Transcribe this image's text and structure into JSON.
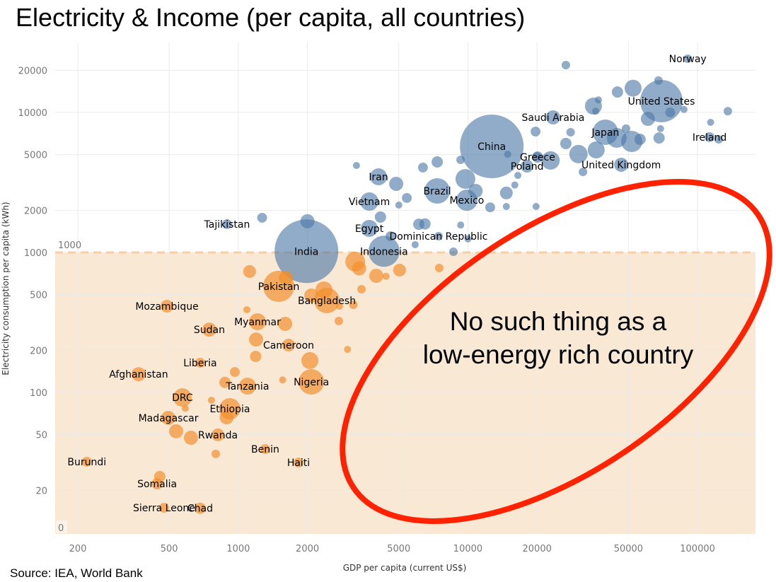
{
  "title": "Electricity & Income (per capita, all countries)",
  "source": "Source: IEA, World Bank",
  "colors": {
    "above_threshold": "#4e79a7",
    "below_threshold": "#f28e2b",
    "shaded_region": "#f8e8d4",
    "threshold_line": "#f5cfa5",
    "ellipse": "#ff2200"
  },
  "chart_data": {
    "type": "scatter",
    "xlabel": "GDP per capita (current US$)",
    "ylabel": "Electricity consumption per capita (kWh)",
    "x_scale": "log",
    "y_scale": "log",
    "xlim": [
      165,
      160000
    ],
    "ylim": [
      11,
      36000
    ],
    "x_ticks": [
      200,
      500,
      1000,
      2000,
      5000,
      10000,
      20000,
      50000,
      100000
    ],
    "y_ticks": [
      20,
      50,
      100,
      200,
      500,
      1000,
      2000,
      5000,
      10000,
      20000
    ],
    "grid": true,
    "size_encoding": "population (relative)",
    "reference_line": {
      "value": 1000,
      "label": "1000",
      "band_bottom_label": "0"
    },
    "annotation": {
      "lines": [
        "No such thing as a",
        "low-energy rich country"
      ]
    },
    "labeled_points": [
      {
        "name": "Norway",
        "gdp": 90600,
        "kwh": 24200,
        "size": 23
      },
      {
        "name": "United States",
        "gdp": 69600,
        "kwh": 12050,
        "size": 576
      },
      {
        "name": "Saudi Arabia",
        "gdp": 23500,
        "kwh": 9220,
        "size": 64
      },
      {
        "name": "Japan",
        "gdp": 39700,
        "kwh": 7220,
        "size": 207
      },
      {
        "name": "Ireland",
        "gdp": 112800,
        "kwh": 6660,
        "size": 31
      },
      {
        "name": "China",
        "gdp": 12700,
        "kwh": 5720,
        "size": 1296
      },
      {
        "name": "Greece",
        "gdp": 20100,
        "kwh": 4800,
        "size": 41
      },
      {
        "name": "Poland",
        "gdp": 18100,
        "kwh": 4130,
        "size": 52
      },
      {
        "name": "United Kingdom",
        "gdp": 46500,
        "kwh": 4230,
        "size": 64
      },
      {
        "name": "Iran",
        "gdp": 4080,
        "kwh": 3470,
        "size": 92
      },
      {
        "name": "Brazil",
        "gdp": 7350,
        "kwh": 2750,
        "size": 207
      },
      {
        "name": "Mexico",
        "gdp": 9890,
        "kwh": 2360,
        "size": 144
      },
      {
        "name": "Vietnam",
        "gdp": 3720,
        "kwh": 2310,
        "size": 108
      },
      {
        "name": "Egypt",
        "gdp": 3720,
        "kwh": 1485,
        "size": 92
      },
      {
        "name": "Dominican Republic",
        "gdp": 7450,
        "kwh": 1306,
        "size": 23
      },
      {
        "name": "Tajikistan",
        "gdp": 893,
        "kwh": 1592,
        "size": 31
      },
      {
        "name": "India",
        "gdp": 1980,
        "kwh": 1020,
        "size": 1296
      },
      {
        "name": "Indonesia",
        "gdp": 4310,
        "kwh": 1020,
        "size": 310
      },
      {
        "name": "Pakistan",
        "gdp": 1500,
        "kwh": 573,
        "size": 310
      },
      {
        "name": "Bangladesh",
        "gdp": 2430,
        "kwh": 454,
        "size": 207
      },
      {
        "name": "Mozambique",
        "gdp": 489,
        "kwh": 413,
        "size": 52
      },
      {
        "name": "Myanmar",
        "gdp": 1212,
        "kwh": 320,
        "size": 92
      },
      {
        "name": "Sudan",
        "gdp": 748,
        "kwh": 281,
        "size": 64
      },
      {
        "name": "Cameroon",
        "gdp": 1656,
        "kwh": 218,
        "size": 52
      },
      {
        "name": "Liberia",
        "gdp": 682,
        "kwh": 163,
        "size": 31
      },
      {
        "name": "Afghanistan",
        "gdp": 368,
        "kwh": 135,
        "size": 64
      },
      {
        "name": "Nigeria",
        "gdp": 2080,
        "kwh": 119,
        "size": 207
      },
      {
        "name": "Tanzania",
        "gdp": 1097,
        "kwh": 111,
        "size": 92
      },
      {
        "name": "DRC",
        "gdp": 571,
        "kwh": 92,
        "size": 108
      },
      {
        "name": "Ethiopia",
        "gdp": 919,
        "kwh": 76.5,
        "size": 144
      },
      {
        "name": "Madagascar",
        "gdp": 496,
        "kwh": 65.8,
        "size": 64
      },
      {
        "name": "Rwanda",
        "gdp": 815,
        "kwh": 49.8,
        "size": 52
      },
      {
        "name": "Benin",
        "gdp": 1310,
        "kwh": 39.4,
        "size": 31
      },
      {
        "name": "Haiti",
        "gdp": 1829,
        "kwh": 31.6,
        "size": 31
      },
      {
        "name": "Burundi",
        "gdp": 219,
        "kwh": 32,
        "size": 31
      },
      {
        "name": "Somalia",
        "gdp": 443,
        "kwh": 22.3,
        "size": 41
      },
      {
        "name": "Sierra Leone",
        "gdp": 475,
        "kwh": 15.0,
        "size": 31
      },
      {
        "name": "Chad",
        "gdp": 682,
        "kwh": 14.9,
        "size": 41
      }
    ],
    "other_points": [
      [
        3270,
        4180,
        16
      ],
      [
        4870,
        3090,
        64
      ],
      [
        6370,
        4040,
        31
      ],
      [
        7350,
        4430,
        41
      ],
      [
        5420,
        2450,
        31
      ],
      [
        5000,
        2180,
        16
      ],
      [
        9750,
        3350,
        125
      ],
      [
        10800,
        2750,
        64
      ],
      [
        12500,
        2100,
        31
      ],
      [
        14700,
        2660,
        52
      ],
      [
        14700,
        2130,
        16
      ],
      [
        14900,
        5030,
        16
      ],
      [
        9290,
        4590,
        23
      ],
      [
        4160,
        1790,
        41
      ],
      [
        6110,
        1590,
        41
      ],
      [
        6500,
        1600,
        41
      ],
      [
        5890,
        1137,
        16
      ],
      [
        8650,
        1012,
        23
      ],
      [
        10000,
        1250,
        16
      ],
      [
        9300,
        1570,
        16
      ],
      [
        4600,
        1306,
        31
      ],
      [
        2000,
        1670,
        64
      ],
      [
        1270,
        1770,
        31
      ],
      [
        26700,
        21800,
        23
      ],
      [
        44800,
        14000,
        41
      ],
      [
        52400,
        14900,
        92
      ],
      [
        67600,
        16900,
        23
      ],
      [
        35200,
        11100,
        92
      ],
      [
        37000,
        12300,
        16
      ],
      [
        36000,
        10200,
        16
      ],
      [
        60800,
        9000,
        64
      ],
      [
        76000,
        10000,
        31
      ],
      [
        87300,
        10500,
        16
      ],
      [
        135500,
        10200,
        23
      ],
      [
        114000,
        8500,
        16
      ],
      [
        69000,
        7660,
        16
      ],
      [
        68000,
        6570,
        41
      ],
      [
        56200,
        6430,
        41
      ],
      [
        51700,
        6210,
        144
      ],
      [
        44500,
        6580,
        125
      ],
      [
        48800,
        7660,
        23
      ],
      [
        36200,
        5400,
        92
      ],
      [
        30300,
        5040,
        108
      ],
      [
        26700,
        6000,
        41
      ],
      [
        28000,
        7220,
        23
      ],
      [
        22900,
        4540,
        108
      ],
      [
        16500,
        3550,
        16
      ],
      [
        16000,
        3030,
        16
      ],
      [
        19800,
        2130,
        16
      ],
      [
        20000,
        4860,
        23
      ],
      [
        19700,
        7300,
        31
      ],
      [
        31700,
        3760,
        23
      ],
      [
        123600,
        6430,
        23
      ],
      [
        1120,
        731,
        52
      ],
      [
        1610,
        658,
        64
      ],
      [
        2080,
        492,
        64
      ],
      [
        2360,
        540,
        92
      ],
      [
        3230,
        860,
        125
      ],
      [
        3360,
        770,
        64
      ],
      [
        3990,
        681,
        64
      ],
      [
        4400,
        675,
        16
      ],
      [
        5040,
        748,
        52
      ],
      [
        3440,
        546,
        23
      ],
      [
        7500,
        774,
        23
      ],
      [
        2760,
        413,
        16
      ],
      [
        3170,
        423,
        23
      ],
      [
        2740,
        324,
        23
      ],
      [
        2990,
        203,
        16
      ],
      [
        1090,
        390,
        16
      ],
      [
        1600,
        309,
        64
      ],
      [
        1195,
        239,
        64
      ],
      [
        1190,
        181,
        41
      ],
      [
        2050,
        169,
        92
      ],
      [
        1560,
        123,
        16
      ],
      [
        966,
        140,
        31
      ],
      [
        875,
        118,
        41
      ],
      [
        764,
        88,
        16
      ],
      [
        890,
        66.5,
        64
      ],
      [
        588,
        77,
        16
      ],
      [
        536,
        52.8,
        64
      ],
      [
        622,
        47.5,
        64
      ],
      [
        798,
        36.4,
        23
      ],
      [
        455,
        25.1,
        41
      ]
    ]
  }
}
